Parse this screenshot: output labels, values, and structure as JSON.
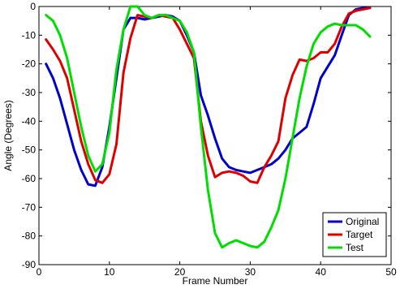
{
  "chart_data": {
    "type": "line",
    "title": "",
    "xlabel": "Frame Number",
    "ylabel": "Angle (Degrees)",
    "xlim": [
      0,
      50
    ],
    "ylim": [
      -90,
      0
    ],
    "xticks": [
      0,
      10,
      20,
      30,
      40,
      50
    ],
    "yticks": [
      0,
      -10,
      -20,
      -30,
      -40,
      -50,
      -60,
      -70,
      -80,
      -90
    ],
    "grid": false,
    "legend_position": "bottom-right",
    "series": [
      {
        "name": "Original",
        "color": "#0000cc",
        "x": [
          1,
          2,
          3,
          4,
          5,
          6,
          7,
          8,
          9,
          10,
          11,
          12,
          13,
          14,
          15,
          16,
          17,
          18,
          19,
          20,
          21,
          22,
          23,
          24,
          25,
          26,
          27,
          28,
          29,
          30,
          31,
          32,
          33,
          34,
          35,
          36,
          37,
          38,
          39,
          40,
          41,
          42,
          43,
          44,
          45,
          46,
          47
        ],
        "y": [
          -20,
          -25,
          -32,
          -41,
          -50,
          -57,
          -62,
          -62.5,
          -56,
          -42,
          -25,
          -8,
          -4,
          -4,
          -4.5,
          -4,
          -3.5,
          -3,
          -3.5,
          -5,
          -10,
          -16,
          -31,
          -38,
          -46,
          -53,
          -56,
          -57,
          -57.5,
          -58,
          -57,
          -56,
          -55,
          -53,
          -50,
          -46,
          -44,
          -42,
          -34,
          -25,
          -21,
          -17,
          -10,
          -3,
          -1,
          -0.5,
          -0.5
        ]
      },
      {
        "name": "Target",
        "color": "#dd0000",
        "x": [
          1,
          2,
          3,
          4,
          5,
          6,
          7,
          8,
          9,
          10,
          11,
          12,
          13,
          14,
          15,
          16,
          17,
          18,
          19,
          20,
          21,
          22,
          23,
          24,
          25,
          26,
          27,
          28,
          29,
          30,
          31,
          32,
          33,
          34,
          35,
          36,
          37,
          38,
          39,
          40,
          41,
          42,
          43,
          44,
          45,
          46,
          47
        ],
        "y": [
          -11.5,
          -15,
          -19,
          -25,
          -36,
          -47,
          -55,
          -60.5,
          -61.5,
          -58.5,
          -48,
          -23,
          -11,
          -3,
          -3.5,
          -4,
          -3,
          -3.5,
          -4,
          -8,
          -13,
          -18,
          -40,
          -52,
          -59.5,
          -58,
          -57.5,
          -58,
          -59,
          -61,
          -61.5,
          -56,
          -52,
          -47,
          -32,
          -24,
          -18.5,
          -19,
          -18,
          -16,
          -16,
          -13,
          -7,
          -2.5,
          -1.5,
          -1,
          -0.5
        ]
      },
      {
        "name": "Test",
        "color": "#00dd00",
        "x": [
          1,
          2,
          3,
          4,
          5,
          6,
          7,
          8,
          9,
          10,
          11,
          12,
          13,
          14,
          15,
          16,
          17,
          18,
          19,
          20,
          21,
          22,
          23,
          24,
          25,
          26,
          27,
          28,
          29,
          30,
          31,
          32,
          33,
          34,
          35,
          36,
          37,
          38,
          39,
          40,
          41,
          42,
          43,
          44,
          45,
          46,
          47
        ],
        "y": [
          -3,
          -5,
          -10,
          -18,
          -30,
          -42,
          -52,
          -57.5,
          -55,
          -44,
          -22,
          -8,
          0,
          0,
          -3,
          -4,
          -3,
          -3,
          -4,
          -5,
          -9,
          -16,
          -42,
          -64,
          -79,
          -84,
          -82.5,
          -81.5,
          -82.5,
          -83.5,
          -84,
          -82,
          -77,
          -71,
          -60,
          -46,
          -32,
          -21,
          -13,
          -9,
          -7,
          -6,
          -6.5,
          -6.5,
          -6.5,
          -8,
          -10.5
        ]
      }
    ]
  }
}
